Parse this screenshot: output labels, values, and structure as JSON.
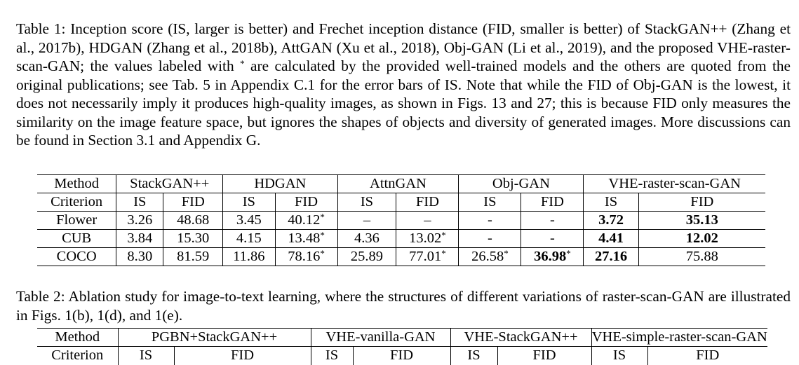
{
  "table1": {
    "caption_label": "Table 1:",
    "caption_text_a": " Inception score (IS, larger is better) and Frechet inception distance (FID, smaller is better) of StackGAN++ (Zhang et al., 2017b), HDGAN (Zhang et al., 2018b), AttGAN (Xu et al., 2018), Obj-GAN (Li et al., 2019), and the proposed VHE-raster-scan-GAN; the values labeled with ",
    "caption_star": "*",
    "caption_text_b": " are calculated by the provided well-trained models and the others are quoted from the original publications; see Tab. 5 in Appendix C.1 for the error bars of IS. Note that while the FID of Obj-GAN is the lowest, it does not necessarily imply it produces high-quality images, as shown in Figs. 13 and 27; this is because FID only measures the similarity on the image feature space, but ignores the shapes of objects and diversity of generated images. More discussions can be found in Section 3.1 and Appendix G.",
    "header": {
      "method": "Method",
      "methods": [
        "StackGAN++",
        "HDGAN",
        "AttnGAN",
        "Obj-GAN",
        "VHE-raster-scan-GAN"
      ],
      "criterion": "Criterion",
      "is": "IS",
      "fid": "FID"
    },
    "rows": [
      {
        "name": "Flower",
        "cells": [
          {
            "v": "3.26"
          },
          {
            "v": "48.68"
          },
          {
            "v": "3.45"
          },
          {
            "v": "40.12",
            "star": "*"
          },
          {
            "v": "–"
          },
          {
            "v": "–"
          },
          {
            "v": "-"
          },
          {
            "v": "-"
          },
          {
            "v": "3.72",
            "bold": true
          },
          {
            "v": "35.13",
            "bold": true
          }
        ]
      },
      {
        "name": "CUB",
        "cells": [
          {
            "v": "3.84"
          },
          {
            "v": "15.30"
          },
          {
            "v": "4.15"
          },
          {
            "v": "13.48",
            "star": "*"
          },
          {
            "v": "4.36"
          },
          {
            "v": "13.02",
            "star": "*"
          },
          {
            "v": "-"
          },
          {
            "v": "-"
          },
          {
            "v": "4.41",
            "bold": true
          },
          {
            "v": "12.02",
            "bold": true
          }
        ]
      },
      {
        "name": "COCO",
        "cells": [
          {
            "v": "8.30"
          },
          {
            "v": "81.59"
          },
          {
            "v": "11.86"
          },
          {
            "v": "78.16",
            "star": "*"
          },
          {
            "v": "25.89"
          },
          {
            "v": "77.01",
            "star": "*"
          },
          {
            "v": "26.58",
            "star": "*"
          },
          {
            "v": "36.98",
            "star": "*",
            "bold": true
          },
          {
            "v": "27.16",
            "bold": true
          },
          {
            "v": "75.88"
          }
        ]
      }
    ]
  },
  "table2": {
    "caption_label": "Table 2:",
    "caption_text": " Ablation study for image-to-text learning, where the structures of different variations of raster-scan-GAN are illustrated in Figs. 1(b), 1(d), and 1(e).",
    "header": {
      "method": "Method",
      "methods": [
        "PGBN+StackGAN++",
        "VHE-vanilla-GAN",
        "VHE-StackGAN++",
        "VHE-simple-raster-scan-GAN"
      ],
      "criterion": "Criterion",
      "is": "IS",
      "fid": "FID"
    }
  }
}
